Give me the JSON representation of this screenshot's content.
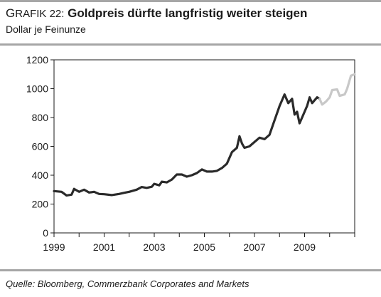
{
  "header": {
    "label_first": "G",
    "label_rest": "RAFIK 22:",
    "headline": "Goldpreis dürfte langfristig weiter steigen",
    "subtitle": "Dollar je Feinunze"
  },
  "footer": {
    "source": "Quelle: Bloomberg, Commerzbank Corporates and Markets"
  },
  "colors": {
    "actual": "#2a2a2a",
    "forecast": "#c8c8c8",
    "separator": "#a6a6a6"
  },
  "chart_data": {
    "type": "line",
    "title": "Goldpreis dürfte langfristig weiter steigen",
    "ylabel": "Dollar je Feinunze",
    "xlabel": "",
    "xlim": [
      1999,
      2011.0
    ],
    "ylim": [
      0,
      1200
    ],
    "x_ticks": [
      1999,
      2001,
      2003,
      2005,
      2007,
      2009
    ],
    "y_ticks": [
      0,
      200,
      400,
      600,
      800,
      1000,
      1200
    ],
    "grid": false,
    "legend": "none",
    "series": [
      {
        "role": "actual",
        "points": [
          [
            1999.0,
            290
          ],
          [
            1999.3,
            285
          ],
          [
            1999.5,
            260
          ],
          [
            1999.7,
            265
          ],
          [
            1999.8,
            305
          ],
          [
            2000.0,
            285
          ],
          [
            2000.2,
            300
          ],
          [
            2000.4,
            280
          ],
          [
            2000.6,
            285
          ],
          [
            2000.8,
            270
          ],
          [
            2001.0,
            268
          ],
          [
            2001.3,
            262
          ],
          [
            2001.6,
            270
          ],
          [
            2001.8,
            278
          ],
          [
            2002.0,
            285
          ],
          [
            2002.3,
            300
          ],
          [
            2002.5,
            318
          ],
          [
            2002.7,
            312
          ],
          [
            2002.9,
            320
          ],
          [
            2003.0,
            340
          ],
          [
            2003.2,
            330
          ],
          [
            2003.3,
            355
          ],
          [
            2003.5,
            350
          ],
          [
            2003.7,
            370
          ],
          [
            2003.9,
            405
          ],
          [
            2004.1,
            405
          ],
          [
            2004.3,
            390
          ],
          [
            2004.5,
            400
          ],
          [
            2004.7,
            415
          ],
          [
            2004.9,
            440
          ],
          [
            2005.1,
            425
          ],
          [
            2005.3,
            425
          ],
          [
            2005.5,
            430
          ],
          [
            2005.7,
            450
          ],
          [
            2005.9,
            480
          ],
          [
            2006.1,
            560
          ],
          [
            2006.3,
            590
          ],
          [
            2006.4,
            670
          ],
          [
            2006.5,
            620
          ],
          [
            2006.6,
            590
          ],
          [
            2006.8,
            600
          ],
          [
            2007.0,
            630
          ],
          [
            2007.2,
            660
          ],
          [
            2007.4,
            650
          ],
          [
            2007.6,
            680
          ],
          [
            2007.8,
            780
          ],
          [
            2008.0,
            880
          ],
          [
            2008.1,
            920
          ],
          [
            2008.2,
            960
          ],
          [
            2008.35,
            900
          ],
          [
            2008.5,
            930
          ],
          [
            2008.6,
            820
          ],
          [
            2008.7,
            840
          ],
          [
            2008.8,
            760
          ],
          [
            2008.9,
            800
          ],
          [
            2009.1,
            880
          ],
          [
            2009.2,
            940
          ],
          [
            2009.3,
            900
          ],
          [
            2009.5,
            940
          ],
          [
            2009.6,
            930
          ]
        ]
      },
      {
        "role": "forecast",
        "points": [
          [
            2009.6,
            930
          ],
          [
            2009.7,
            890
          ],
          [
            2009.85,
            910
          ],
          [
            2010.0,
            940
          ],
          [
            2010.1,
            990
          ],
          [
            2010.3,
            995
          ],
          [
            2010.4,
            950
          ],
          [
            2010.6,
            960
          ],
          [
            2010.7,
            1000
          ],
          [
            2010.85,
            1090
          ],
          [
            2011.0,
            1100
          ]
        ]
      }
    ]
  }
}
